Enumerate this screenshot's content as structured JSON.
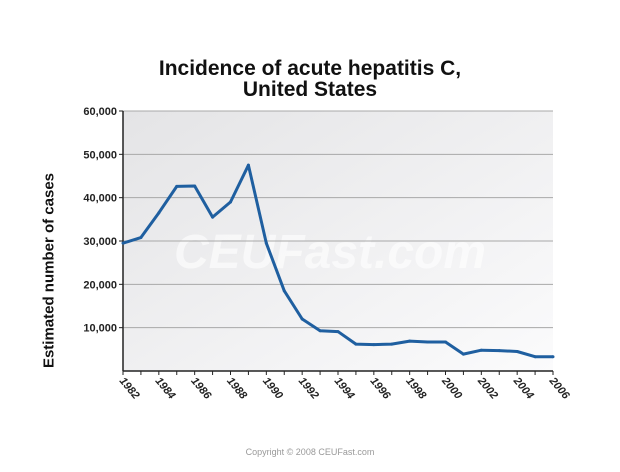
{
  "chart_data": {
    "type": "line",
    "title": "Incidence of acute hepatitis C, United States",
    "title_lines": [
      "Incidence of acute hepatitis C,",
      "United States"
    ],
    "xlabel": "",
    "ylabel": "Estimated number of cases",
    "xlim": [
      1982,
      2006
    ],
    "ylim": [
      0,
      60000
    ],
    "grid": true,
    "x_ticks": [
      "1982",
      "1984",
      "1986",
      "1988",
      "1990",
      "1992",
      "1994",
      "1996",
      "1998",
      "2000",
      "2002",
      "2004",
      "2006"
    ],
    "y_ticks": [
      "10,000",
      "20,000",
      "30,000",
      "40,000",
      "50,000",
      "60,000"
    ],
    "line_color": "#1f5fa0",
    "series": [
      {
        "x": [
          1982,
          1983,
          1984,
          1985,
          1986,
          1987,
          1988,
          1989,
          1990,
          1991,
          1992,
          1993,
          1994,
          1995,
          1996,
          1997,
          1998,
          1999,
          2000,
          2001,
          2002,
          2003,
          2004,
          2005,
          2006
        ],
        "values": [
          29500,
          30800,
          36500,
          42600,
          42700,
          35500,
          39000,
          47500,
          29500,
          18500,
          12000,
          9300,
          9100,
          6200,
          6100,
          6200,
          6900,
          6700,
          6700,
          3900,
          4800,
          4700,
          4500,
          3300,
          3300
        ]
      }
    ]
  },
  "watermark": "CEUFast.com",
  "copyright": "Copyright © 2008 CEUFast.com"
}
